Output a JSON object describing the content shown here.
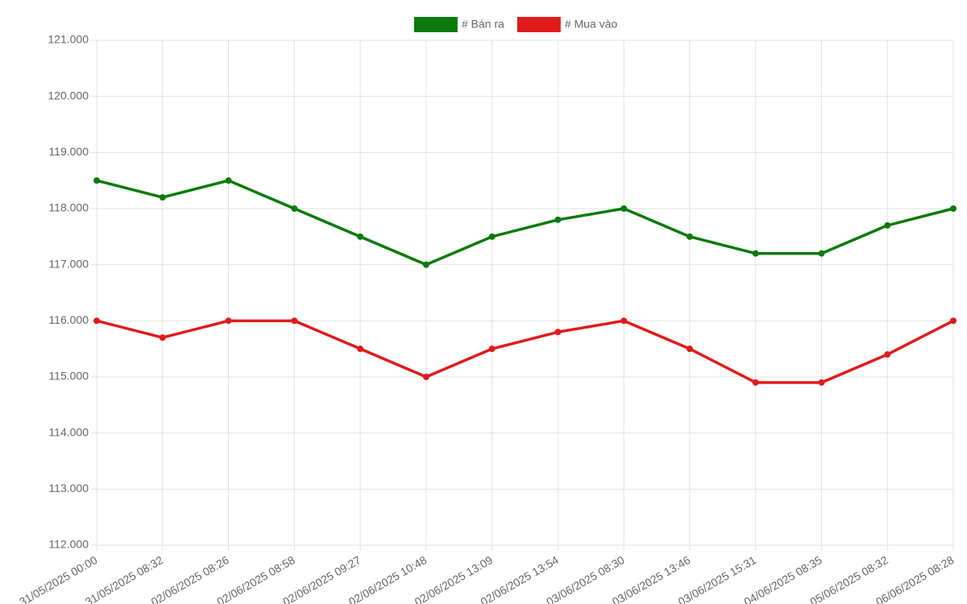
{
  "chart_data": {
    "type": "line",
    "categories": [
      "31/05/2025 00:00",
      "31/05/2025 08:32",
      "02/06/2025 08:26",
      "02/06/2025 08:58",
      "02/06/2025 09:27",
      "02/06/2025 10:48",
      "02/06/2025 13:09",
      "02/06/2025 13:54",
      "03/06/2025 08:30",
      "03/06/2025 13:46",
      "03/06/2025 15:31",
      "04/06/2025 08:35",
      "05/06/2025 08:32",
      "06/06/2025 08:28"
    ],
    "series": [
      {
        "name": "# Bán ra",
        "color": "#0b7a0b",
        "values": [
          118500,
          118200,
          118500,
          118000,
          117500,
          117000,
          117500,
          117800,
          118000,
          117500,
          117200,
          117200,
          117700,
          118000
        ]
      },
      {
        "name": "# Mua vào",
        "color": "#e01b1b",
        "values": [
          116000,
          115700,
          116000,
          116000,
          115500,
          115000,
          115500,
          115800,
          116000,
          115500,
          114900,
          114900,
          115400,
          116000
        ]
      }
    ],
    "ylim": [
      112000,
      121000
    ],
    "yticks": [
      {
        "value": 112000,
        "label": "112.000"
      },
      {
        "value": 113000,
        "label": "113.000"
      },
      {
        "value": 114000,
        "label": "114.000"
      },
      {
        "value": 115000,
        "label": "115.000"
      },
      {
        "value": 116000,
        "label": "116.000"
      },
      {
        "value": 117000,
        "label": "117.000"
      },
      {
        "value": 118000,
        "label": "118.000"
      },
      {
        "value": 119000,
        "label": "119.000"
      },
      {
        "value": 120000,
        "label": "120.000"
      },
      {
        "value": 121000,
        "label": "121.000"
      }
    ],
    "grid": true,
    "legend": "top"
  }
}
